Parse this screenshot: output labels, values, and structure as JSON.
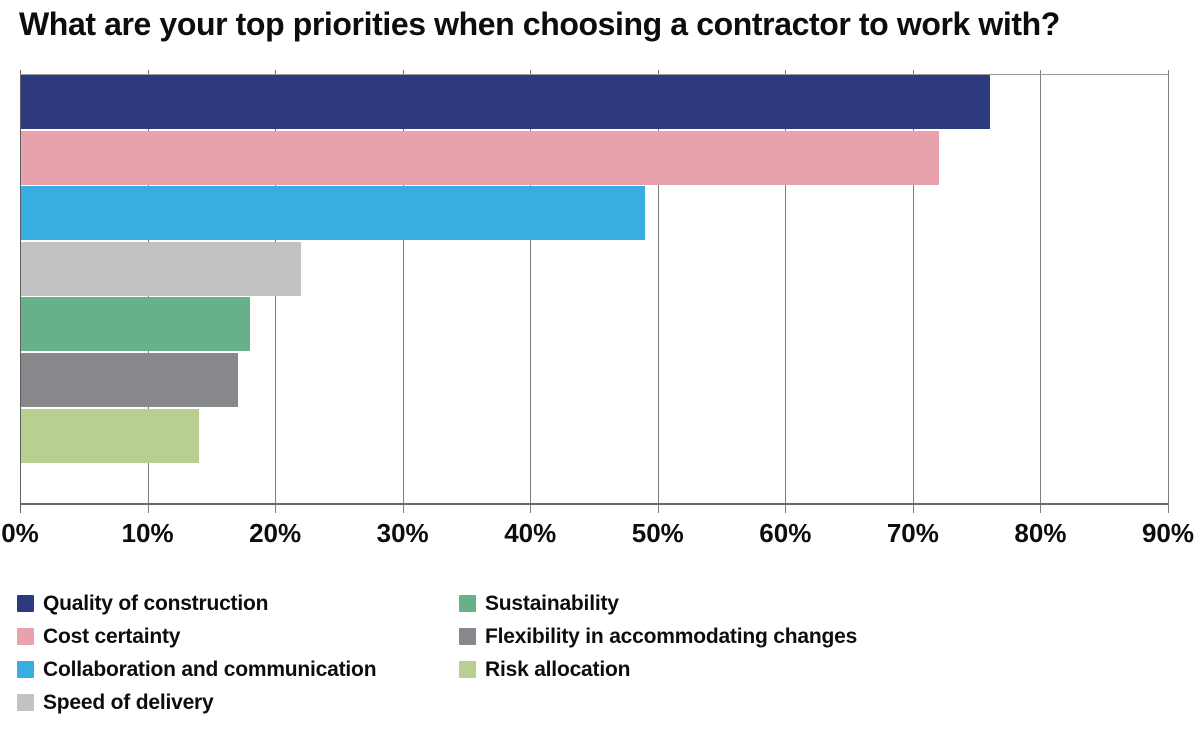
{
  "title": "What are your top priorities when choosing a contractor to work with?",
  "chart_data": {
    "type": "bar",
    "orientation": "horizontal",
    "title": "What are your top priorities when choosing a contractor to work with?",
    "categories": [
      "Quality of construction",
      "Cost certainty",
      "Collaboration and communication",
      "Speed of delivery",
      "Sustainability",
      "Flexibility in accommodating changes",
      "Risk allocation"
    ],
    "values": [
      76,
      72,
      49,
      22,
      18,
      17,
      14
    ],
    "unit": "%",
    "colors": [
      "#2e3a7e",
      "#e8a2ab",
      "#38ade1",
      "#c1c2c4",
      "#66b189",
      "#87888b",
      "#b9ce91"
    ],
    "xlim": [
      0,
      90
    ],
    "x_ticks": [
      "0%",
      "10%",
      "20%",
      "30%",
      "40%",
      "50%",
      "60%",
      "70%",
      "80%",
      "90%"
    ],
    "xlabel": "",
    "ylabel": "",
    "grid": "vertical",
    "legend_position": "bottom",
    "legend_columns": 2,
    "legend_split_index": 4
  }
}
